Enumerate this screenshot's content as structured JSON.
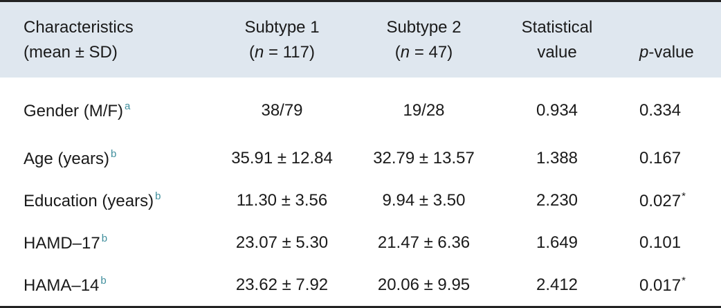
{
  "table": {
    "header": [
      {
        "line1": "Characteristics",
        "line2": "(mean ± SD)"
      },
      {
        "line1": "Subtype 1",
        "line2_open": "(",
        "line2_italic": "n",
        "line2_rest": " = 117)"
      },
      {
        "line1": "Subtype 2",
        "line2_open": "(",
        "line2_italic": "n",
        "line2_rest": " = 47)"
      },
      {
        "line1": "Statistical",
        "line2": "value"
      },
      {
        "line2_italic": "p",
        "line2_rest": "-value"
      }
    ],
    "rows": [
      {
        "label": "Gender (M/F)",
        "note": "a",
        "subtype1": "38/79",
        "subtype2": "19/28",
        "statistic": "0.934",
        "p": "0.334"
      },
      {
        "label": "Age (years)",
        "note": "b",
        "subtype1": "35.91 ± 12.84",
        "subtype2": "32.79 ± 13.57",
        "statistic": "1.388",
        "p": "0.167"
      },
      {
        "label": "Education (years)",
        "note": "b",
        "subtype1": "11.30 ± 3.56",
        "subtype2": "9.94 ± 3.50",
        "statistic": "2.230",
        "p": "0.027",
        "p_mark": "*"
      },
      {
        "label": "HAMD–17",
        "note": "b",
        "subtype1": "23.07 ± 5.30",
        "subtype2": "21.47 ± 6.36",
        "statistic": "1.649",
        "p": "0.101"
      },
      {
        "label": "HAMA–14",
        "note": "b",
        "subtype1": "23.62 ± 7.92",
        "subtype2": "20.06 ± 9.95",
        "statistic": "2.412",
        "p": "0.017",
        "p_mark": "*"
      }
    ]
  }
}
